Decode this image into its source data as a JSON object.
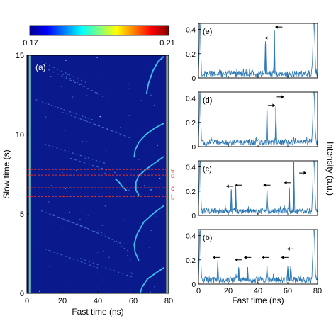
{
  "chart_data": [
    {
      "panel": "(a)",
      "type": "heatmap",
      "xlabel": "Fast time (ns)",
      "ylabel": "Slow time (s)",
      "xlim": [
        0,
        80
      ],
      "ylim": [
        0,
        15
      ],
      "xticks": [
        "0",
        "20",
        "40",
        "60",
        "80"
      ],
      "yticks": [
        "0",
        "5",
        "10",
        "15"
      ],
      "colorbar": {
        "min_label": "0.17",
        "max_label": "0.21",
        "min": 0.17,
        "max": 0.21
      },
      "slice_markers": [
        {
          "label": "e",
          "slow_time": 7.8
        },
        {
          "label": "d",
          "slow_time": 7.45
        },
        {
          "label": "c",
          "slow_time": 6.65
        },
        {
          "label": "b",
          "slow_time": 6.1
        }
      ],
      "colors": {
        "background": "#0a1a8c",
        "traces": "#3fc8ee",
        "markers": "#dd3333",
        "edges": "#d9b26a"
      }
    },
    {
      "panel": "(e)",
      "type": "line",
      "xlim": [
        0,
        80
      ],
      "ylim": [
        0,
        0.45
      ],
      "yticks": [
        "0",
        "0.2",
        "0.4"
      ],
      "peaks": [
        {
          "x": 45,
          "y": 0.28
        },
        {
          "x": 51,
          "y": 0.39
        }
      ],
      "arrows": [
        {
          "x": 47,
          "y": 0.33,
          "dir": "left"
        },
        {
          "x": 54,
          "y": 0.42,
          "dir": "left"
        }
      ]
    },
    {
      "panel": "(d)",
      "type": "line",
      "xlim": [
        0,
        80
      ],
      "ylim": [
        0,
        0.45
      ],
      "yticks": [
        "0",
        "0.2",
        "0.4"
      ],
      "peaks": [
        {
          "x": 46,
          "y": 0.3
        },
        {
          "x": 52,
          "y": 0.33
        }
      ],
      "arrows": [
        {
          "x": 49,
          "y": 0.34,
          "dir": "right"
        },
        {
          "x": 55,
          "y": 0.41,
          "dir": "right"
        }
      ]
    },
    {
      "panel": "(c)",
      "type": "line",
      "xlim": [
        0,
        80
      ],
      "ylim": [
        0,
        0.45
      ],
      "yticks": [
        "0",
        "0.2",
        "0.4"
      ],
      "peaks": [
        {
          "x": 22,
          "y": 0.2
        },
        {
          "x": 25,
          "y": 0.22
        },
        {
          "x": 46,
          "y": 0.2
        },
        {
          "x": 61,
          "y": 0.22
        },
        {
          "x": 64,
          "y": 0.44
        }
      ],
      "arrows": [
        {
          "x": 21,
          "y": 0.24,
          "dir": "left"
        },
        {
          "x": 27,
          "y": 0.25,
          "dir": "left"
        },
        {
          "x": 46,
          "y": 0.25,
          "dir": "left"
        },
        {
          "x": 60,
          "y": 0.27,
          "dir": "left"
        },
        {
          "x": 70,
          "y": 0.35,
          "dir": "right"
        }
      ]
    },
    {
      "panel": "(b)",
      "type": "line",
      "xlabel": "Fast time (ns)",
      "xlim": [
        0,
        80
      ],
      "ylim": [
        0,
        0.45
      ],
      "xticks": [
        "0",
        "20",
        "40",
        "60",
        "80"
      ],
      "yticks": [
        "0",
        "0.2",
        "0.4"
      ],
      "peaks": [
        {
          "x": 13,
          "y": 0.17
        },
        {
          "x": 27,
          "y": 0.13
        },
        {
          "x": 33,
          "y": 0.14
        },
        {
          "x": 46,
          "y": 0.15
        },
        {
          "x": 60,
          "y": 0.13
        },
        {
          "x": 62,
          "y": 0.15
        }
      ],
      "arrows": [
        {
          "x": 12,
          "y": 0.22,
          "dir": "left"
        },
        {
          "x": 27,
          "y": 0.2,
          "dir": "left"
        },
        {
          "x": 33,
          "y": 0.22,
          "dir": "left"
        },
        {
          "x": 45,
          "y": 0.22,
          "dir": "left"
        },
        {
          "x": 58,
          "y": 0.22,
          "dir": "left"
        },
        {
          "x": 62,
          "y": 0.29,
          "dir": "left"
        }
      ]
    }
  ],
  "right_ylabel": "Intensity (a.u.)"
}
